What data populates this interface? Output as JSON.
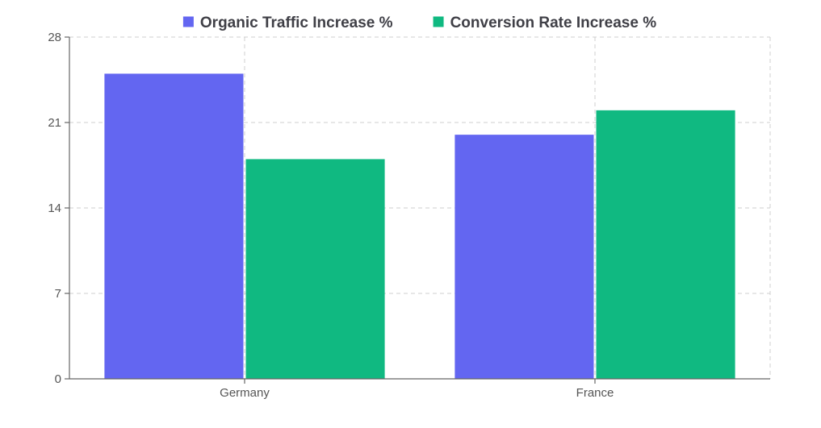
{
  "chart_data": {
    "type": "bar",
    "title": "",
    "xlabel": "",
    "ylabel": "",
    "categories": [
      "Germany",
      "France"
    ],
    "series": [
      {
        "name": "Organic Traffic Increase %",
        "color": "#6366f1",
        "values": [
          25,
          20
        ]
      },
      {
        "name": "Conversion Rate Increase %",
        "color": "#10b981",
        "values": [
          18,
          22
        ]
      }
    ],
    "ylim": [
      0,
      28
    ],
    "yticks": [
      0,
      7,
      14,
      21,
      28
    ],
    "grid": true,
    "legend_position": "top"
  }
}
